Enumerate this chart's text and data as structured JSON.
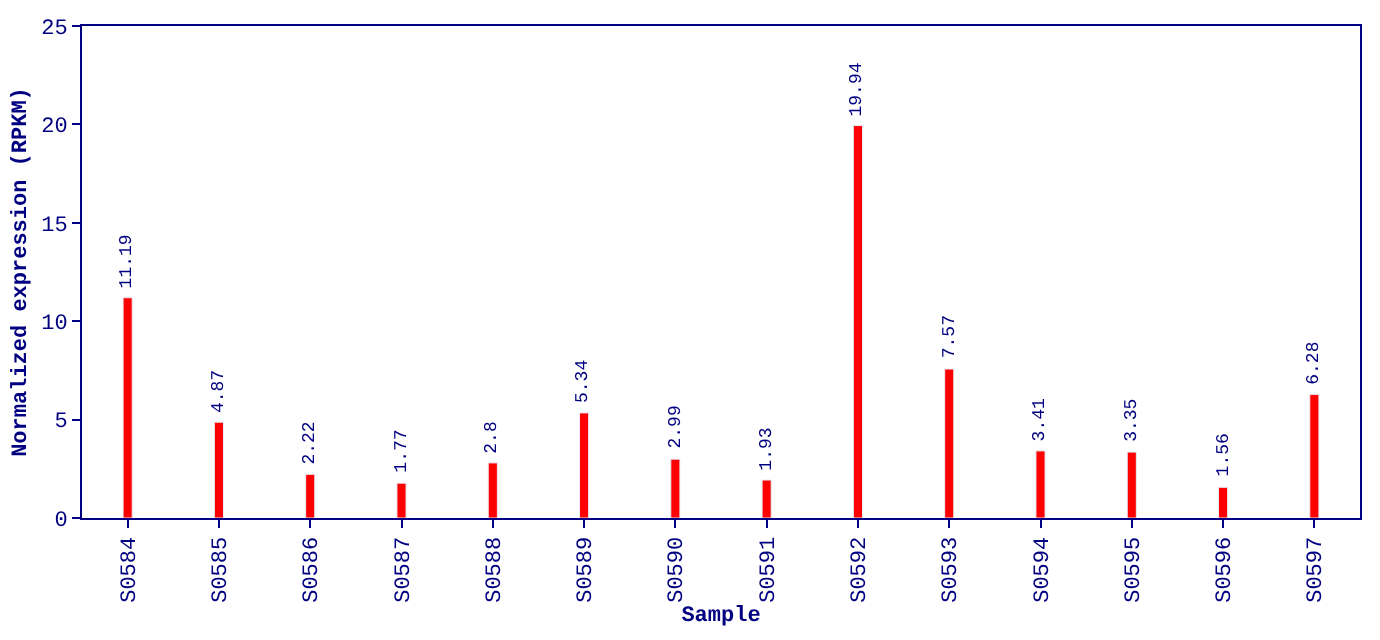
{
  "chart_data": {
    "type": "bar",
    "xlabel": "Sample",
    "ylabel": "Normalized expression (RPKM)",
    "categories": [
      "S0584",
      "S0585",
      "S0586",
      "S0587",
      "S0588",
      "S0589",
      "S0590",
      "S0591",
      "S0592",
      "S0593",
      "S0594",
      "S0595",
      "S0596",
      "S0597"
    ],
    "values": [
      11.19,
      4.87,
      2.22,
      1.77,
      2.8,
      5.34,
      2.99,
      1.93,
      19.94,
      7.57,
      3.41,
      3.35,
      1.56,
      6.28
    ],
    "color": "#ff0000",
    "ylim": [
      0,
      25
    ],
    "yticks": [
      0,
      5,
      10,
      15,
      20,
      25
    ],
    "data_labels": true
  }
}
